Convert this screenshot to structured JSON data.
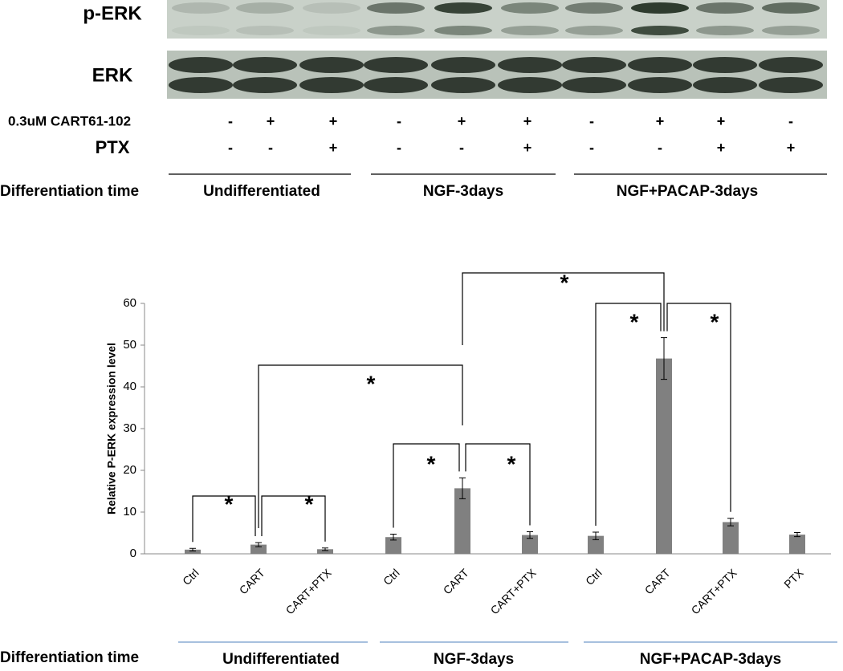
{
  "blot": {
    "labels": [
      "p-ERK",
      "ERK"
    ]
  },
  "treatments": [
    {
      "label": "0.3uM CART61-102",
      "signs": [
        "-",
        "+",
        "+",
        "-",
        "+",
        "+",
        "-",
        "+",
        "+",
        "-"
      ]
    },
    {
      "label": "PTX",
      "signs": [
        "-",
        "-",
        "+",
        "-",
        "-",
        "+",
        "-",
        "-",
        "+",
        "+"
      ]
    }
  ],
  "top_groups": {
    "label": "Differentiation time",
    "groups": [
      "Undifferentiated",
      "NGF-3days",
      "NGF+PACAP-3days"
    ]
  },
  "chart_data": {
    "type": "bar",
    "y_label": "Relative P-ERK expression level",
    "categories": [
      "Ctrl",
      "CART",
      "CART+PTX",
      "Ctrl",
      "CART",
      "CART+PTX",
      "Ctrl",
      "CART",
      "CART+PTX",
      "PTX"
    ],
    "values": [
      1,
      2.2,
      1.1,
      4,
      15.7,
      4.5,
      4.3,
      46.8,
      7.6,
      4.6
    ],
    "errors": [
      0.3,
      0.5,
      0.3,
      0.7,
      2.5,
      0.8,
      0.9,
      5,
      0.9,
      0.5
    ],
    "color": "#808080",
    "ylim": [
      0,
      60
    ],
    "yticks": [
      0,
      10,
      20,
      30,
      40,
      50,
      60
    ],
    "annotations": [
      "*",
      "*",
      "*",
      "*",
      "*",
      "*",
      "*",
      "*"
    ],
    "group_label": "Differentiation time",
    "groups": [
      "Undifferentiated",
      "NGF-3days",
      "NGF+PACAP-3days"
    ]
  }
}
